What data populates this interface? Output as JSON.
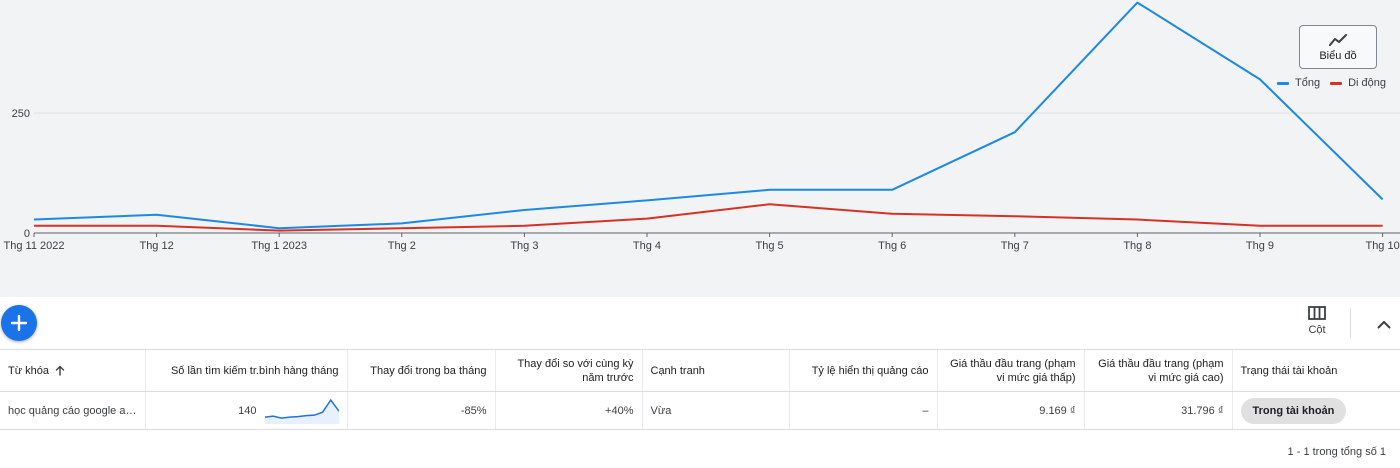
{
  "chart": {
    "view_button_label": "Biểu đồ",
    "view_button_icon": "line-chart-icon",
    "legend": [
      {
        "name": "Tổng",
        "color": "#1e88e5"
      },
      {
        "name": "Di động",
        "color": "#d93025"
      }
    ]
  },
  "chart_data": {
    "type": "line",
    "categories": [
      "Thg 11 2022",
      "Thg 12",
      "Thg 1 2023",
      "Thg 2",
      "Thg 3",
      "Thg 4",
      "Thg 5",
      "Thg 6",
      "Thg 7",
      "Thg 8",
      "Thg 9",
      "Thg 10"
    ],
    "y_ticks": [
      0,
      250,
      500
    ],
    "ylim": [
      0,
      500
    ],
    "grid": true,
    "legend_position": "top-right",
    "series": [
      {
        "name": "Tổng",
        "color": "#1e88e5",
        "values": [
          28,
          38,
          10,
          20,
          48,
          68,
          90,
          90,
          210,
          480,
          320,
          70
        ]
      },
      {
        "name": "Di động",
        "color": "#d93025",
        "values": [
          15,
          15,
          5,
          10,
          15,
          30,
          60,
          40,
          35,
          28,
          15,
          15
        ]
      }
    ]
  },
  "toolbar": {
    "add_icon": "plus-icon",
    "columns_label": "Cột",
    "columns_icon": "columns-icon",
    "collapse_icon": "chevron-up-icon"
  },
  "table": {
    "headers": {
      "keyword": "Từ khóa",
      "avg_searches": "Số lần tìm kiếm tr.bình hàng tháng",
      "three_month_change": "Thay đổi trong ba tháng",
      "yoy_change": "Thay đổi so với cùng kỳ năm trước",
      "competition": "Cạnh tranh",
      "impression_share": "Tỷ lệ hiển thị quảng cáo",
      "bid_low": "Giá thầu đầu trang (phạm vi mức giá thấp)",
      "bid_high": "Giá thầu đầu trang (phạm vi mức giá cao)",
      "account_status": "Trạng thái tài khoản"
    },
    "rows": [
      {
        "keyword": "học quảng cáo google ads",
        "avg_searches": "140",
        "trend": [
          10,
          12,
          8,
          10,
          11,
          13,
          14,
          20,
          45,
          22
        ],
        "three_month_change": "-85%",
        "yoy_change": "+40%",
        "competition": "Vừa",
        "impression_share": "–",
        "bid_low": "9.169 ₫",
        "bid_high": "31.796 ₫",
        "account_status": "Trong tài khoản"
      }
    ]
  },
  "pagination": "1 - 1 trong tổng số 1"
}
